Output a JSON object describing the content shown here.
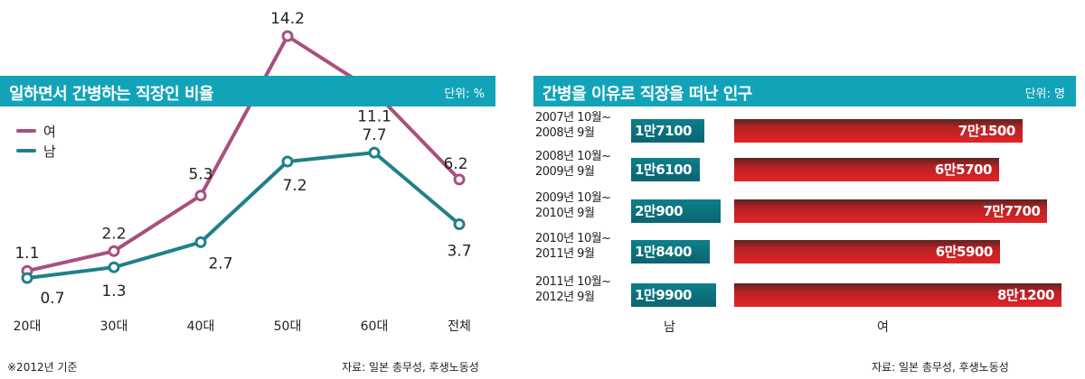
{
  "left": {
    "title": "일하면서 간병하는 직장인 비율",
    "unit": "단위: %",
    "footnote": "※2012년 기준",
    "source": "자료: 일본 총무성, 후생노동성",
    "colors": {
      "female": "#a94f7e",
      "male": "#1f8089"
    }
  },
  "right": {
    "title": "간병을 이유로 직장을 떠난 인구",
    "unit": "단위: 명",
    "source": "자료: 일본 총무성, 후생노동성",
    "male_label": "남",
    "female_label": "여",
    "colors": {
      "male": "#0d7f8c",
      "female": "#e42326"
    }
  },
  "chart_data": [
    {
      "type": "line",
      "title": "일하면서 간병하는 직장인 비율",
      "categories": [
        "20대",
        "30대",
        "40대",
        "50대",
        "60대",
        "전체"
      ],
      "series": [
        {
          "name": "여",
          "values": [
            1.1,
            2.2,
            5.3,
            14.2,
            11.1,
            6.2
          ],
          "labels": [
            "1.1",
            "2.2",
            "5.3",
            "14.2",
            "11.1",
            "6.2"
          ]
        },
        {
          "name": "남",
          "values": [
            0.7,
            1.3,
            2.7,
            7.2,
            7.7,
            3.7
          ],
          "labels": [
            "0.7",
            "1.3",
            "2.7",
            "7.2",
            "7.7",
            "3.7"
          ]
        }
      ],
      "ylim": [
        0,
        14.2
      ],
      "grid": false,
      "legend": "top-left"
    },
    {
      "type": "bar",
      "title": "간병을 이유로 직장을 떠난 인구",
      "categories": [
        [
          "2007년 10월~",
          "2008년 9월"
        ],
        [
          "2008년 10월~",
          "2009년 9월"
        ],
        [
          "2009년 10월~",
          "2010년 9월"
        ],
        [
          "2010년 10월~",
          "2011년 9월"
        ],
        [
          "2011년 10월~",
          "2012년 9월"
        ]
      ],
      "series": [
        {
          "name": "남",
          "values": [
            17100,
            16100,
            20900,
            18400,
            19900
          ],
          "labels": [
            "1만7100",
            "1만6100",
            "2만900",
            "1만8400",
            "1만9900"
          ]
        },
        {
          "name": "여",
          "values": [
            71500,
            65700,
            77700,
            65900,
            81200
          ],
          "labels": [
            "7만1500",
            "6만5700",
            "7만7700",
            "6만5900",
            "8만1200"
          ]
        }
      ]
    }
  ]
}
